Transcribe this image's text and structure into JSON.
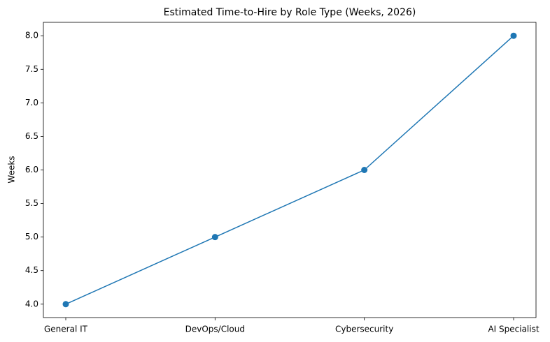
{
  "chart_data": {
    "type": "line",
    "title": "Estimated Time-to-Hire by Role Type (Weeks, 2026)",
    "y_label": "Weeks",
    "categories": [
      "General IT",
      "DevOps/Cloud",
      "Cybersecurity",
      "AI Specialist"
    ],
    "values": [
      4,
      5,
      6,
      8
    ],
    "color": "#1f77b4",
    "markers": true,
    "ylim": [
      3.8,
      8.2
    ],
    "yticks": [
      {
        "value": 4,
        "label": "4.0"
      },
      {
        "value": 4.5,
        "label": "4.5"
      },
      {
        "value": 5,
        "label": "5.0"
      },
      {
        "value": 5.5,
        "label": "5.5"
      },
      {
        "value": 6,
        "label": "6.0"
      },
      {
        "value": 6.5,
        "label": "6.5"
      },
      {
        "value": 7,
        "label": "7.0"
      },
      {
        "value": 7.5,
        "label": "7.5"
      },
      {
        "value": 8,
        "label": "8.0"
      }
    ],
    "grid": false
  }
}
